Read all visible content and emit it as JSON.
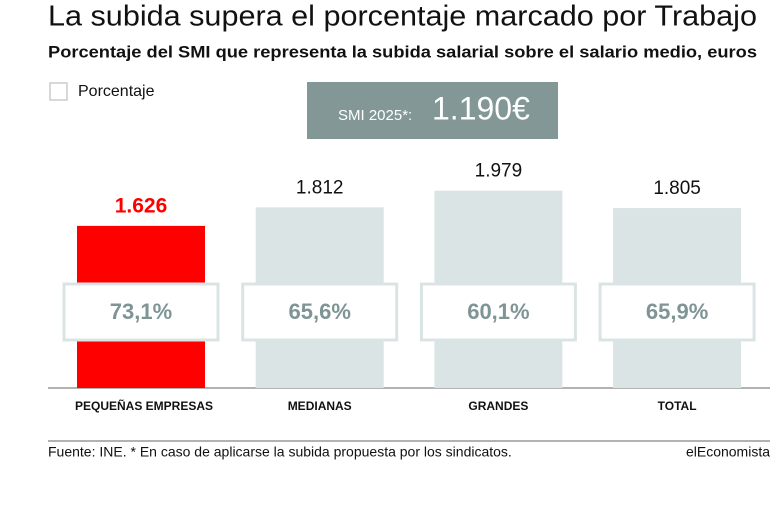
{
  "chart_data": {
    "type": "bar",
    "title": "La subida supera el porcentaje marcado por Trabajo",
    "subtitle": "Porcentaje del SMI que representa la subida salarial sobre el salario medio, euros",
    "legend": "Porcentaje",
    "smi_label": "SMI 2025*:",
    "smi_value": "1.190€",
    "categories": [
      "PEQUEÑAS EMPRESAS",
      "MEDIANAS",
      "GRANDES",
      "TOTAL"
    ],
    "values": [
      1626,
      1812,
      1979,
      1805
    ],
    "value_labels": [
      "1.626",
      "1.812",
      "1.979",
      "1.805"
    ],
    "percentages": [
      73.1,
      65.6,
      60.1,
      65.9
    ],
    "percentage_labels": [
      "73,1%",
      "65,6%",
      "60,1%",
      "65,9%"
    ],
    "colors": [
      "#fe0000",
      "#dbe4e4",
      "#dbe4e4",
      "#dbe4e4"
    ],
    "source": "Fuente: INE. * En caso de aplicarse la subida propuesta por los sindicatos.",
    "brand": "elEconomista"
  }
}
